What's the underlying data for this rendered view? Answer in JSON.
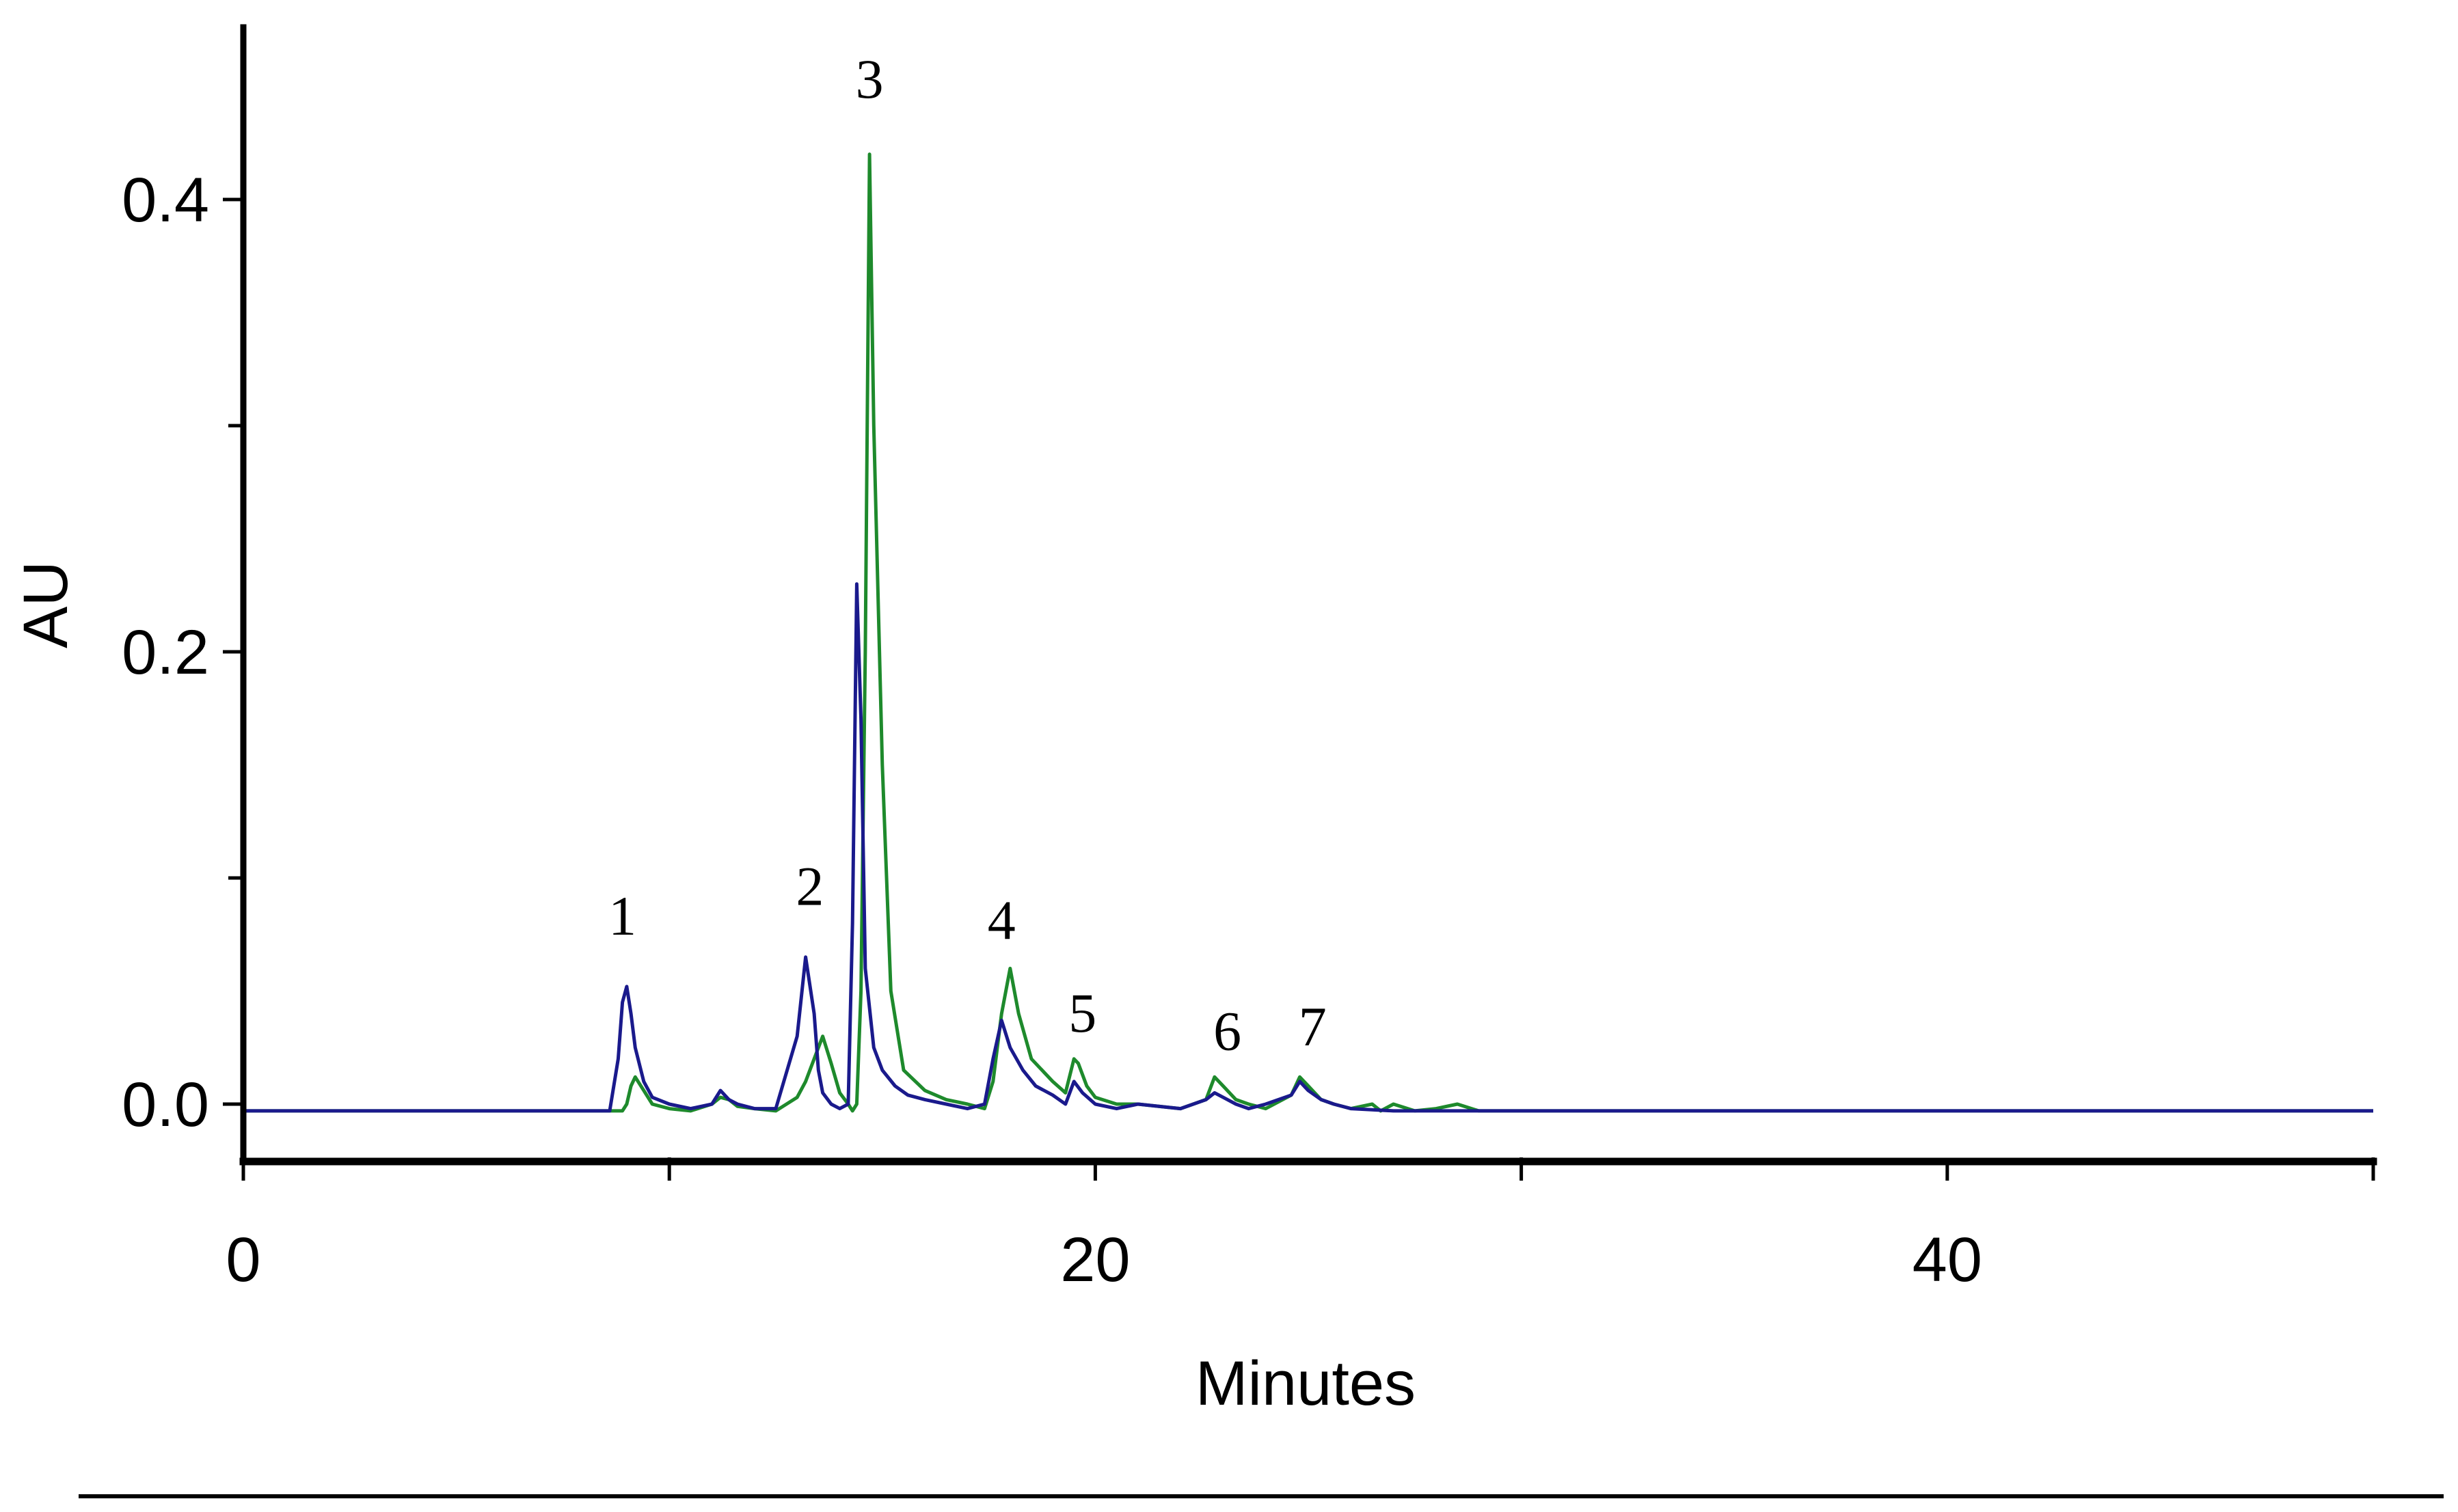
{
  "chart_data": {
    "type": "line",
    "xlabel": "Minutes",
    "ylabel": "AU",
    "xlim": [
      0,
      50
    ],
    "ylim": [
      -0.05,
      0.47
    ],
    "x_ticks": [
      0,
      20,
      40
    ],
    "x_minor_ticks": [
      10,
      30,
      50
    ],
    "y_ticks": [
      0.0,
      0.2,
      0.4
    ],
    "y_tick_labels": [
      "0.0",
      "0.2",
      "0.4"
    ],
    "y_minor_ticks": [
      0.1,
      0.3
    ],
    "grid": false,
    "colors": {
      "green": "#1e8a2c",
      "blue": "#1a1a8c"
    },
    "series": [
      {
        "color": "#1e8a2c",
        "x": [
          0,
          8.9,
          9.0,
          9.1,
          9.2,
          9.4,
          9.6,
          10.0,
          10.5,
          11.0,
          11.2,
          11.4,
          11.6,
          12.0,
          12.5,
          13.0,
          13.2,
          13.4,
          13.6,
          13.8,
          14.0,
          14.2,
          14.3,
          14.4,
          14.5,
          14.6,
          14.7,
          14.8,
          15.0,
          15.2,
          15.5,
          16.0,
          16.5,
          17.0,
          17.4,
          17.6,
          17.8,
          18.0,
          18.2,
          18.5,
          19.0,
          19.3,
          19.5,
          19.6,
          19.8,
          20.0,
          20.5,
          21.0,
          22.0,
          22.6,
          22.8,
          23.0,
          23.3,
          23.6,
          24.0,
          24.6,
          24.8,
          25.0,
          25.3,
          25.6,
          26.0,
          26.5,
          26.7,
          27.0,
          27.5,
          28.0,
          28.5,
          29.0,
          29.5,
          30.0,
          50
        ],
        "y": [
          -0.003,
          -0.003,
          0.0,
          0.008,
          0.012,
          0.006,
          0.0,
          -0.002,
          -0.003,
          0.0,
          0.003,
          0.002,
          -0.001,
          -0.002,
          -0.003,
          0.003,
          0.01,
          0.02,
          0.03,
          0.018,
          0.005,
          0.0,
          -0.003,
          0.0,
          0.05,
          0.2,
          0.42,
          0.3,
          0.15,
          0.05,
          0.015,
          0.006,
          0.002,
          0.0,
          -0.002,
          0.01,
          0.04,
          0.06,
          0.04,
          0.02,
          0.01,
          0.005,
          0.02,
          0.018,
          0.008,
          0.003,
          0.0,
          0.0,
          -0.002,
          0.002,
          0.012,
          0.008,
          0.002,
          0.0,
          -0.002,
          0.004,
          0.012,
          0.008,
          0.002,
          0.0,
          -0.002,
          0.0,
          -0.003,
          0.0,
          -0.003,
          -0.002,
          0.0,
          -0.003,
          -0.003,
          -0.003,
          -0.003
        ]
      },
      {
        "color": "#1a1a8c",
        "x": [
          0,
          8.6,
          8.8,
          8.9,
          9.0,
          9.1,
          9.2,
          9.4,
          9.6,
          10.0,
          10.5,
          11.0,
          11.2,
          11.4,
          11.6,
          12.0,
          12.5,
          13.0,
          13.2,
          13.4,
          13.5,
          13.6,
          13.8,
          14.0,
          14.2,
          14.3,
          14.4,
          14.5,
          14.6,
          14.8,
          15.0,
          15.3,
          15.6,
          16.0,
          16.5,
          17.0,
          17.4,
          17.6,
          17.8,
          18.0,
          18.3,
          18.6,
          19.0,
          19.3,
          19.5,
          19.7,
          20.0,
          20.5,
          21.0,
          22.0,
          22.6,
          22.8,
          23.0,
          23.3,
          23.6,
          24.0,
          24.6,
          24.8,
          25.0,
          25.3,
          25.6,
          26.0,
          27.0,
          28.0,
          29.0,
          30.0,
          50
        ],
        "y": [
          -0.003,
          -0.003,
          0.02,
          0.045,
          0.052,
          0.04,
          0.025,
          0.01,
          0.003,
          0.0,
          -0.002,
          0.0,
          0.006,
          0.002,
          0.0,
          -0.002,
          -0.002,
          0.03,
          0.065,
          0.04,
          0.015,
          0.005,
          0.0,
          -0.002,
          0.0,
          0.08,
          0.23,
          0.17,
          0.06,
          0.025,
          0.015,
          0.008,
          0.004,
          0.002,
          0.0,
          -0.002,
          0.0,
          0.02,
          0.037,
          0.025,
          0.015,
          0.008,
          0.004,
          0.0,
          0.01,
          0.005,
          0.0,
          -0.002,
          0.0,
          -0.002,
          0.002,
          0.005,
          0.003,
          0.0,
          -0.002,
          0.0,
          0.004,
          0.01,
          0.006,
          0.002,
          0.0,
          -0.002,
          -0.003,
          -0.003,
          -0.003,
          -0.003,
          -0.003
        ]
      }
    ],
    "annotations": [
      {
        "text": "1",
        "x": 8.9,
        "y": 0.075
      },
      {
        "text": "2",
        "x": 13.3,
        "y": 0.088
      },
      {
        "text": "3",
        "x": 14.7,
        "y": 0.445
      },
      {
        "text": "4",
        "x": 17.8,
        "y": 0.073
      },
      {
        "text": "5",
        "x": 19.7,
        "y": 0.032
      },
      {
        "text": "6",
        "x": 23.1,
        "y": 0.024
      },
      {
        "text": "7",
        "x": 25.1,
        "y": 0.026
      }
    ]
  }
}
